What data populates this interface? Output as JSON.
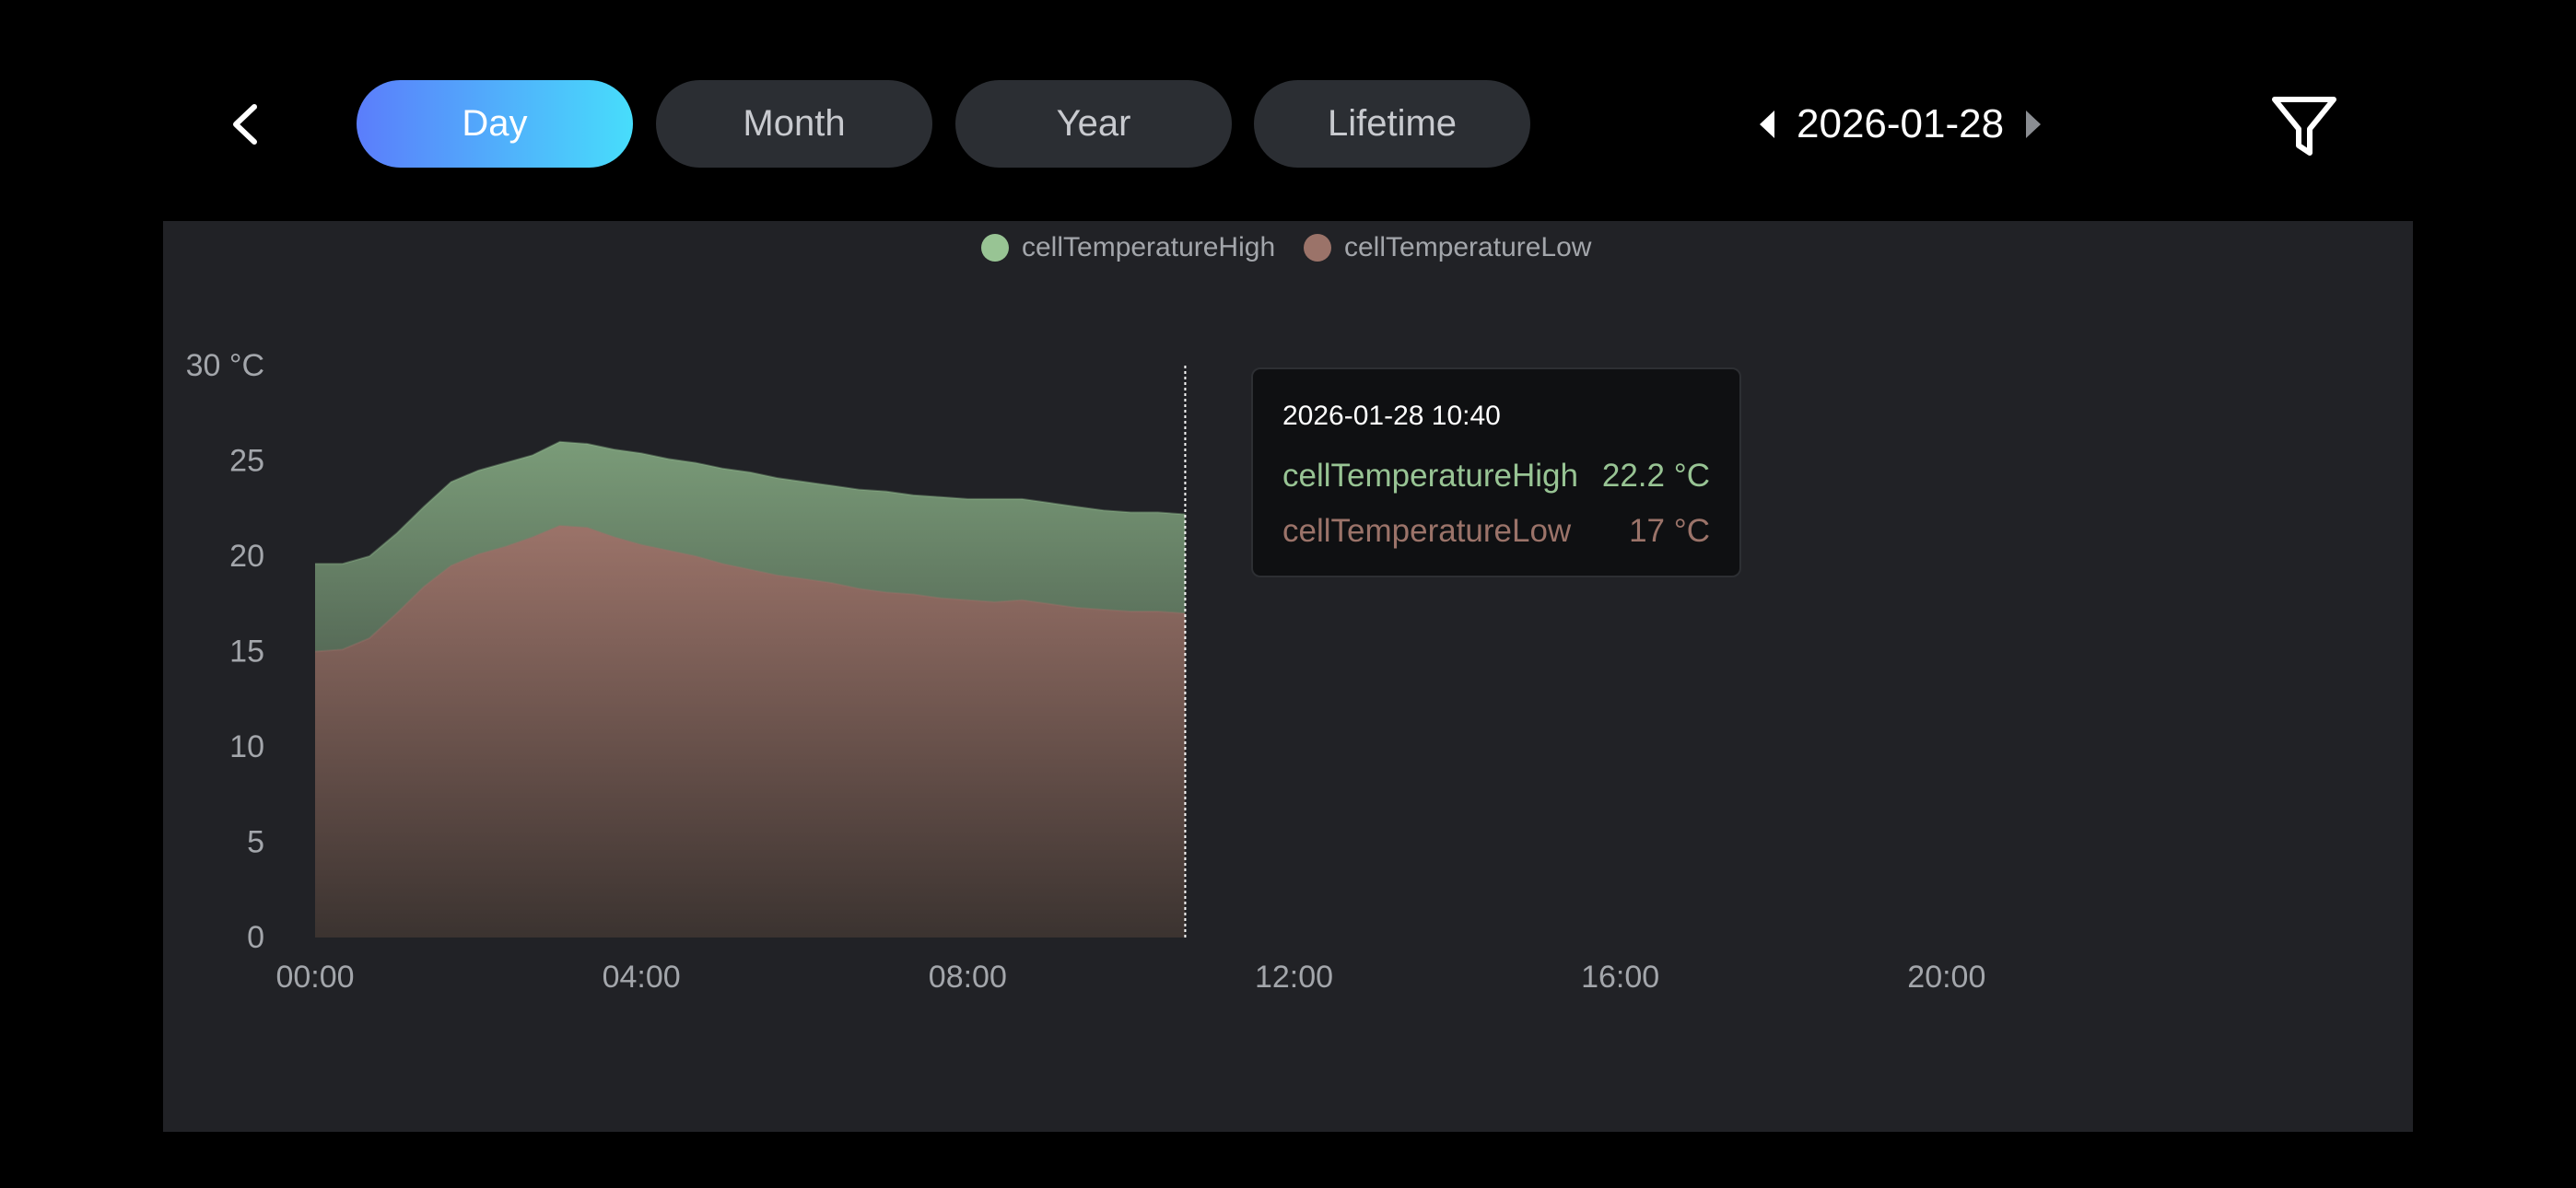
{
  "toolbar": {
    "back_icon": "chevron-left-icon",
    "tabs": [
      {
        "label": "Day",
        "active": true
      },
      {
        "label": "Month",
        "active": false
      },
      {
        "label": "Year",
        "active": false
      },
      {
        "label": "Lifetime",
        "active": false
      }
    ],
    "date": "2026-01-28",
    "prev_icon": "triangle-left-icon",
    "next_icon": "triangle-right-icon",
    "filter_icon": "filter-icon",
    "active_gradient": [
      "#5b7dfb",
      "#47ddfb"
    ]
  },
  "tooltip": {
    "time": "2026-01-28 10:40",
    "rows": [
      {
        "name": "cellTemperatureHigh",
        "value": "22.2 °C"
      },
      {
        "name": "cellTemperatureLow",
        "value": "17 °C"
      }
    ]
  },
  "chart_data": {
    "type": "area",
    "title": "",
    "xlabel": "",
    "ylabel": "",
    "y_unit": "°C",
    "ylim": [
      0,
      30
    ],
    "yticks": [
      "0",
      "5",
      "10",
      "15",
      "20",
      "25",
      "30 °C"
    ],
    "xlim": [
      "00:00",
      "24:00"
    ],
    "xticks": [
      "00:00",
      "04:00",
      "08:00",
      "12:00",
      "16:00",
      "20:00"
    ],
    "legend_position": "top-center",
    "grid": false,
    "cursor_time": "10:40",
    "x": [
      "00:00",
      "00:20",
      "00:40",
      "01:00",
      "01:20",
      "01:40",
      "02:00",
      "02:20",
      "02:40",
      "03:00",
      "03:20",
      "03:40",
      "04:00",
      "04:20",
      "04:40",
      "05:00",
      "05:20",
      "05:40",
      "06:00",
      "06:20",
      "06:40",
      "07:00",
      "07:20",
      "07:40",
      "08:00",
      "08:20",
      "08:40",
      "09:00",
      "09:20",
      "09:40",
      "10:00",
      "10:20",
      "10:40"
    ],
    "series": [
      {
        "name": "cellTemperatureHigh",
        "color": "#98c494",
        "values": [
          19.6,
          19.6,
          20.0,
          21.2,
          22.6,
          23.9,
          24.5,
          24.9,
          25.3,
          26.0,
          25.9,
          25.6,
          25.4,
          25.1,
          24.9,
          24.6,
          24.4,
          24.1,
          23.9,
          23.7,
          23.5,
          23.4,
          23.2,
          23.1,
          23.0,
          23.0,
          23.0,
          22.8,
          22.6,
          22.4,
          22.3,
          22.3,
          22.2
        ]
      },
      {
        "name": "cellTemperatureLow",
        "color": "#9b7369",
        "values": [
          15.0,
          15.1,
          15.7,
          17.0,
          18.4,
          19.5,
          20.1,
          20.5,
          21.0,
          21.6,
          21.5,
          21.0,
          20.6,
          20.3,
          20.0,
          19.6,
          19.3,
          19.0,
          18.8,
          18.6,
          18.3,
          18.1,
          18.0,
          17.8,
          17.7,
          17.6,
          17.7,
          17.5,
          17.3,
          17.2,
          17.1,
          17.1,
          17.0
        ]
      }
    ]
  }
}
